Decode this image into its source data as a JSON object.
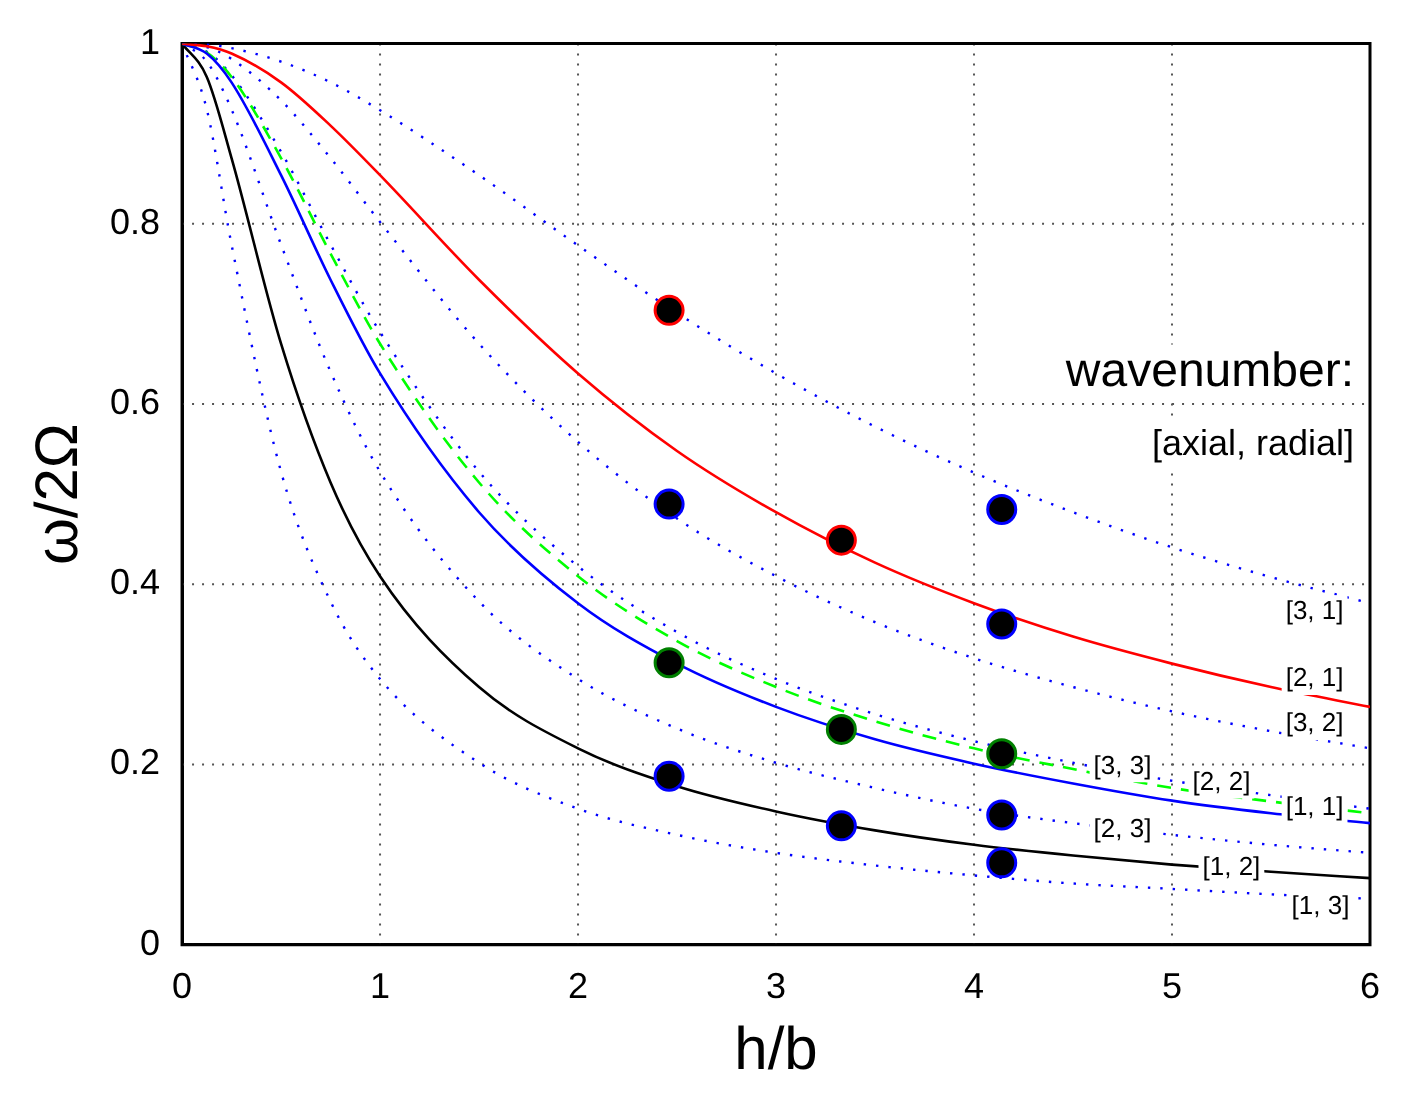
{
  "chart_data": {
    "type": "line",
    "xlabel": "h/b",
    "ylabel": "ω/2Ω",
    "x": [
      0,
      0.125,
      0.25,
      0.5,
      0.75,
      1,
      1.5,
      2,
      2.5,
      3,
      3.5,
      4,
      4.5,
      5,
      5.5,
      6
    ],
    "series": [
      {
        "name": "[2, 1]",
        "color": "#ff0000",
        "line_style": "solid",
        "values": [
          1,
          0.997,
          0.989,
          0.957,
          0.909,
          0.854,
          0.738,
          0.634,
          0.548,
          0.48,
          0.424,
          0.379,
          0.342,
          0.312,
          0.286,
          0.264
        ]
      },
      {
        "name": "[1, 1]",
        "color": "#0000ff",
        "line_style": "solid",
        "values": [
          1,
          0.989,
          0.957,
          0.854,
          0.738,
          0.634,
          0.48,
          0.379,
          0.312,
          0.264,
          0.228,
          0.201,
          0.179,
          0.16,
          0.146,
          0.135
        ]
      },
      {
        "name": "[2, 2]",
        "color": "#00ff00",
        "line_style": "dashed",
        "values": [
          1,
          0.99,
          0.963,
          0.873,
          0.767,
          0.667,
          0.513,
          0.409,
          0.337,
          0.286,
          0.248,
          0.218,
          0.195,
          0.174,
          0.159,
          0.146
        ]
      },
      {
        "name": "[1, 2]",
        "color": "#000000",
        "line_style": "solid",
        "values": [
          1,
          0.963,
          0.873,
          0.667,
          0.513,
          0.409,
          0.286,
          0.218,
          0.176,
          0.148,
          0.127,
          0.111,
          0.099,
          0.089,
          0.081,
          0.074
        ]
      },
      {
        "name": "[3, 1]",
        "color": "#0000ff",
        "line_style": "dotted",
        "values": [
          1,
          0.999,
          0.995,
          0.98,
          0.957,
          0.926,
          0.854,
          0.776,
          0.701,
          0.634,
          0.575,
          0.524,
          0.48,
          0.441,
          0.408,
          0.379
        ]
      },
      {
        "name": "[3, 2]",
        "color": "#0000ff",
        "line_style": "dotted",
        "values": [
          1,
          0.996,
          0.983,
          0.937,
          0.873,
          0.802,
          0.667,
          0.558,
          0.473,
          0.409,
          0.358,
          0.318,
          0.286,
          0.259,
          0.237,
          0.218
        ]
      },
      {
        "name": "[3, 3]",
        "color": "#0000ff",
        "line_style": "dotted",
        "values": [
          1,
          0.991,
          0.965,
          0.88,
          0.777,
          0.68,
          0.525,
          0.42,
          0.347,
          0.295,
          0.256,
          0.226,
          0.202,
          0.182,
          0.166,
          0.151
        ]
      },
      {
        "name": "[2, 3]",
        "color": "#0000ff",
        "line_style": "dotted",
        "values": [
          1,
          0.98,
          0.927,
          0.777,
          0.636,
          0.525,
          0.381,
          0.295,
          0.24,
          0.202,
          0.174,
          0.151,
          0.135,
          0.122,
          0.111,
          0.102
        ]
      },
      {
        "name": "[1, 3]",
        "color": "#0000ff",
        "line_style": "dotted",
        "values": [
          1,
          0.927,
          0.777,
          0.525,
          0.381,
          0.295,
          0.202,
          0.151,
          0.122,
          0.102,
          0.088,
          0.077,
          0.068,
          0.062,
          0.056,
          0.051
        ]
      },
      {
        "type": "scatter",
        "color": "#ff0000",
        "marker": "circle",
        "x": [
          2.46,
          3.33
        ],
        "values": [
          0.704,
          0.449
        ]
      },
      {
        "type": "scatter",
        "color": "#0000ff",
        "marker": "circle",
        "x": [
          2.46,
          4.14,
          4.14,
          2.46,
          3.33,
          4.14,
          4.14
        ],
        "values": [
          0.489,
          0.483,
          0.356,
          0.187,
          0.132,
          0.144,
          0.091
        ]
      },
      {
        "type": "scatter",
        "color": "#008000",
        "marker": "circle",
        "x": [
          2.46,
          3.33,
          4.14
        ],
        "values": [
          0.313,
          0.239,
          0.212
        ]
      }
    ],
    "annotations": [
      "wavenumber:",
      "[axial, radial]"
    ],
    "xlim": [
      0,
      6
    ],
    "xticks": [
      0,
      1,
      2,
      3,
      4,
      5,
      6
    ],
    "ylim": [
      0,
      1
    ],
    "yticks": [
      0,
      0.2,
      0.4,
      0.6,
      0.8,
      1
    ],
    "grid": true,
    "legend": false,
    "marker": "none"
  }
}
